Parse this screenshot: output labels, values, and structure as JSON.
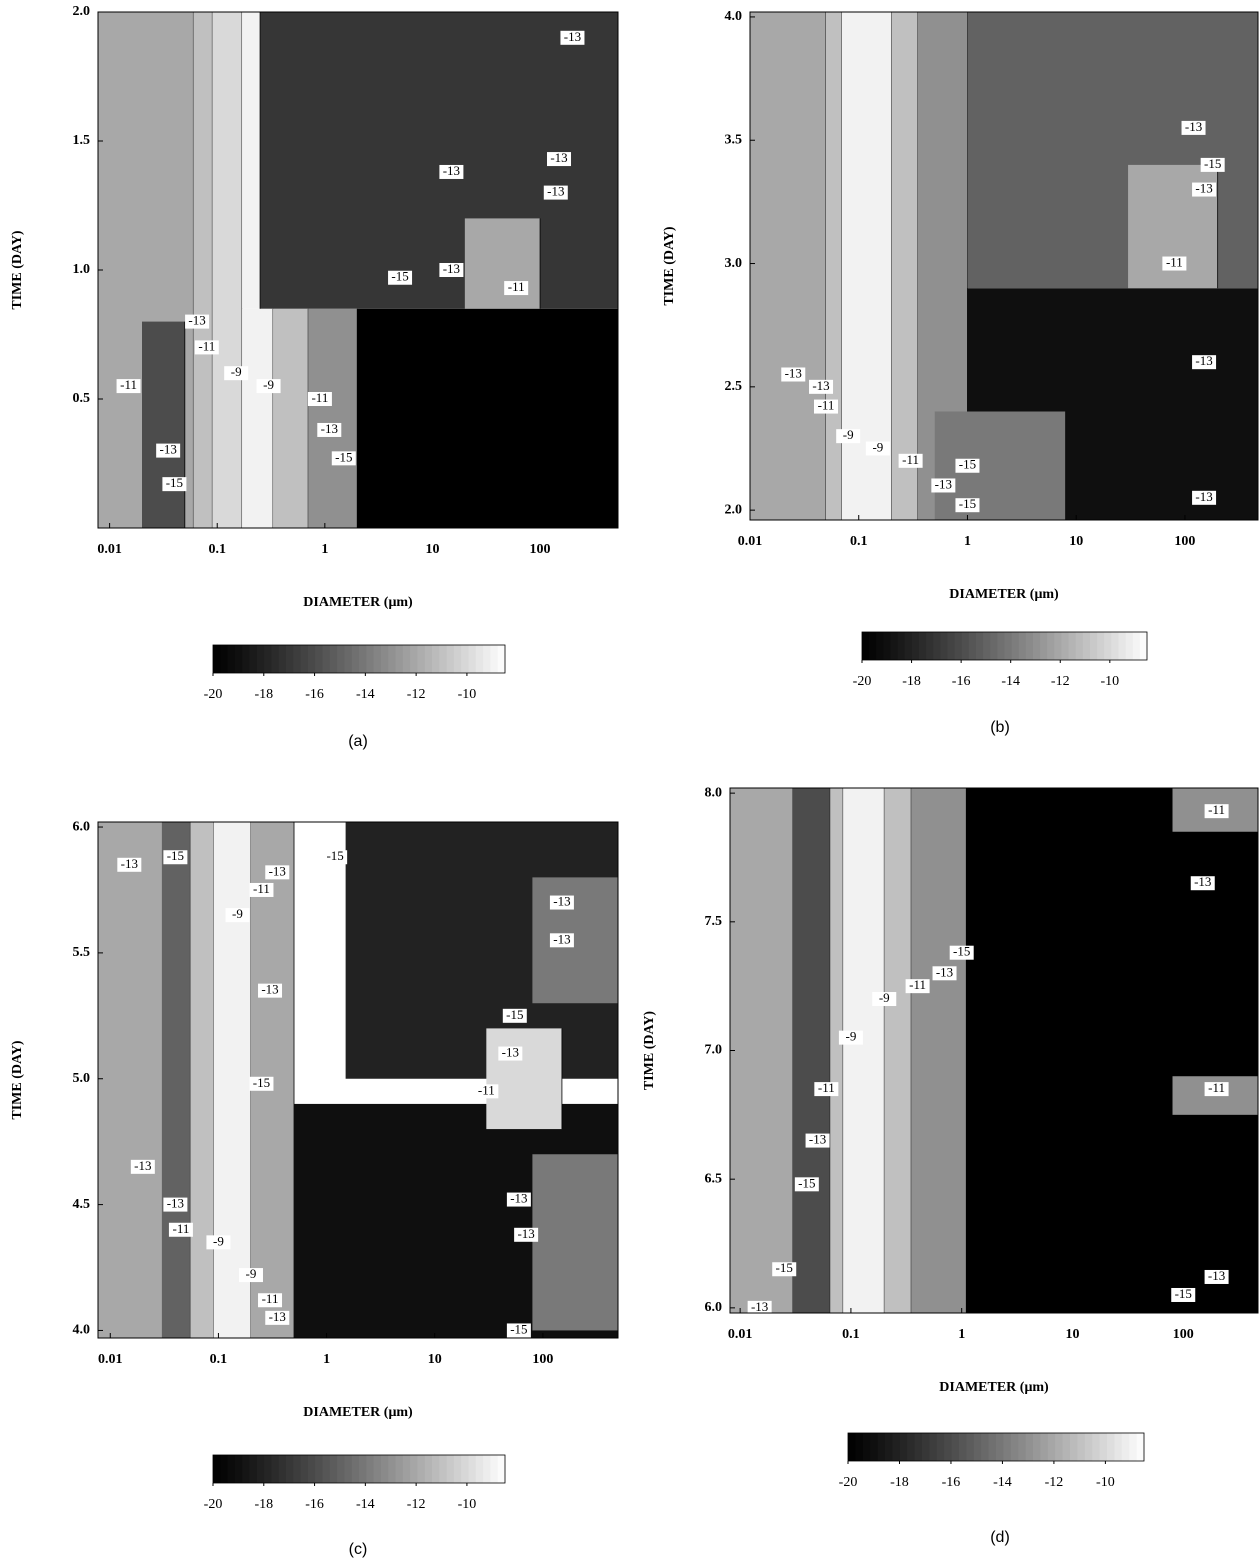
{
  "chart_data": [
    {
      "type": "contour",
      "label": "(a)",
      "xlabel": "DIAMETER (μm)",
      "ylabel": "TIME (DAY)",
      "log_x": true,
      "xlim": [
        0.0078,
        530
      ],
      "xticks": [
        0.01,
        0.1,
        1,
        10,
        100
      ],
      "ylim": [
        0,
        2
      ],
      "yticks": [
        0.5,
        {
          "value": 1,
          "label": "1.0"
        },
        1.5,
        {
          "value": 2,
          "label": "2.0"
        }
      ],
      "bands": [
        {
          "x": [
            0.0078,
            0.06
          ],
          "y": [
            0,
            2
          ],
          "value": -12
        },
        {
          "x": [
            0.02,
            0.05
          ],
          "y": [
            0,
            0.8
          ],
          "value": -16
        },
        {
          "x": [
            0.06,
            0.09
          ],
          "y": [
            0,
            2
          ],
          "value": -11
        },
        {
          "x": [
            0.09,
            0.17
          ],
          "y": [
            0,
            2
          ],
          "value": -10
        },
        {
          "x": [
            0.17,
            0.33
          ],
          "y": [
            0,
            0.85
          ],
          "value": -9
        },
        {
          "x": [
            0.33,
            0.7
          ],
          "y": [
            0,
            0.85
          ],
          "value": -11
        },
        {
          "x": [
            0.7,
            2
          ],
          "y": [
            0,
            0.85
          ],
          "value": -13
        },
        {
          "x": [
            2,
            530
          ],
          "y": [
            0,
            0.85
          ],
          "value": -20
        },
        {
          "x": [
            0.25,
            530
          ],
          "y": [
            0.85,
            2
          ],
          "value": -17
        },
        {
          "x": [
            20,
            100
          ],
          "y": [
            0.85,
            1.2
          ],
          "value": -12
        },
        {
          "x": [
            0.17,
            0.25
          ],
          "y": [
            0.85,
            2
          ],
          "value": -9
        }
      ],
      "contour_labels": [
        {
          "x": 0.015,
          "y": 0.55,
          "value": -11
        },
        {
          "x": 0.035,
          "y": 0.3,
          "value": -13
        },
        {
          "x": 0.04,
          "y": 0.17,
          "value": -15
        },
        {
          "x": 0.065,
          "y": 0.8,
          "value": -13
        },
        {
          "x": 0.08,
          "y": 0.7,
          "value": -11
        },
        {
          "x": 0.15,
          "y": 0.6,
          "value": -9
        },
        {
          "x": 0.3,
          "y": 0.55,
          "value": -9
        },
        {
          "x": 0.9,
          "y": 0.5,
          "value": -11
        },
        {
          "x": 1.1,
          "y": 0.38,
          "value": -13
        },
        {
          "x": 1.5,
          "y": 0.27,
          "value": -15
        },
        {
          "x": 5,
          "y": 0.97,
          "value": -15
        },
        {
          "x": 15,
          "y": 1.0,
          "value": -13
        },
        {
          "x": 60,
          "y": 0.93,
          "value": -11
        },
        {
          "x": 15,
          "y": 1.38,
          "value": -13
        },
        {
          "x": 150,
          "y": 1.43,
          "value": -13
        },
        {
          "x": 140,
          "y": 1.3,
          "value": -13
        },
        {
          "x": 200,
          "y": 1.9,
          "value": -13
        }
      ],
      "colorbar": {
        "lim": [
          -20,
          -8.5
        ],
        "ticks": [
          -20,
          -18,
          -16,
          -14,
          -12,
          -10
        ]
      }
    },
    {
      "type": "contour",
      "label": "(b)",
      "xlabel": "DIAMETER (μm)",
      "ylabel": "TIME (DAY)",
      "log_x": true,
      "xlim": [
        0.01,
        470
      ],
      "xticks": [
        0.01,
        0.1,
        1,
        10,
        100
      ],
      "ylim": [
        1.96,
        4.02
      ],
      "yticks": [
        {
          "value": 2,
          "label": "2.0"
        },
        2.5,
        {
          "value": 3,
          "label": "3.0"
        },
        3.5,
        {
          "value": 4,
          "label": "4.0"
        }
      ],
      "bands": [
        {
          "x": [
            0.01,
            0.05
          ],
          "y": [
            1.96,
            4.02
          ],
          "value": -12
        },
        {
          "x": [
            0.05,
            0.07
          ],
          "y": [
            1.96,
            4.02
          ],
          "value": -11
        },
        {
          "x": [
            0.07,
            0.2
          ],
          "y": [
            1.96,
            4.02
          ],
          "value": -9
        },
        {
          "x": [
            0.2,
            0.35
          ],
          "y": [
            1.96,
            4.02
          ],
          "value": -11
        },
        {
          "x": [
            0.35,
            1
          ],
          "y": [
            1.96,
            4.02
          ],
          "value": -13
        },
        {
          "x": [
            1,
            470
          ],
          "y": [
            1.96,
            2.9
          ],
          "value": -19
        },
        {
          "x": [
            1,
            470
          ],
          "y": [
            2.9,
            4.02
          ],
          "value": -15
        },
        {
          "x": [
            30,
            200
          ],
          "y": [
            2.9,
            3.4
          ],
          "value": -12
        },
        {
          "x": [
            0.5,
            8
          ],
          "y": [
            1.96,
            2.4
          ],
          "value": -14
        }
      ],
      "contour_labels": [
        {
          "x": 0.025,
          "y": 2.55,
          "value": -13
        },
        {
          "x": 0.045,
          "y": 2.5,
          "value": -13
        },
        {
          "x": 0.05,
          "y": 2.42,
          "value": -11
        },
        {
          "x": 0.08,
          "y": 2.3,
          "value": -9
        },
        {
          "x": 0.15,
          "y": 2.25,
          "value": -9
        },
        {
          "x": 0.3,
          "y": 2.2,
          "value": -11
        },
        {
          "x": 1,
          "y": 2.18,
          "value": -15
        },
        {
          "x": 0.6,
          "y": 2.1,
          "value": -13
        },
        {
          "x": 1,
          "y": 2.02,
          "value": -15
        },
        {
          "x": 120,
          "y": 3.55,
          "value": -13
        },
        {
          "x": 180,
          "y": 3.4,
          "value": -15
        },
        {
          "x": 150,
          "y": 3.3,
          "value": -13
        },
        {
          "x": 80,
          "y": 3.0,
          "value": -11
        },
        {
          "x": 150,
          "y": 2.6,
          "value": -13
        },
        {
          "x": 150,
          "y": 2.05,
          "value": -13
        }
      ],
      "colorbar": {
        "lim": [
          -20,
          -8.5
        ],
        "ticks": [
          -20,
          -18,
          -16,
          -14,
          -12,
          -10
        ]
      }
    },
    {
      "type": "contour",
      "label": "(c)",
      "xlabel": "DIAMETER (μm)",
      "ylabel": "TIME (DAY)",
      "log_x": true,
      "xlim": [
        0.0077,
        495
      ],
      "xticks": [
        0.01,
        0.1,
        1,
        10,
        100
      ],
      "ylim": [
        3.97,
        6.02
      ],
      "yticks": [
        {
          "value": 4,
          "label": "4.0"
        },
        4.5,
        {
          "value": 5,
          "label": "5.0"
        },
        5.5,
        {
          "value": 6,
          "label": "6.0"
        }
      ],
      "bands": [
        {
          "x": [
            0.0077,
            0.04
          ],
          "y": [
            3.97,
            6.02
          ],
          "value": -12
        },
        {
          "x": [
            0.03,
            0.055
          ],
          "y": [
            3.97,
            6.02
          ],
          "value": -15
        },
        {
          "x": [
            0.055,
            0.09
          ],
          "y": [
            3.97,
            6.02
          ],
          "value": -11
        },
        {
          "x": [
            0.09,
            0.2
          ],
          "y": [
            3.97,
            6.02
          ],
          "value": -9
        },
        {
          "x": [
            0.2,
            0.5
          ],
          "y": [
            3.97,
            6.02
          ],
          "value": -12
        },
        {
          "x": [
            0.5,
            495
          ],
          "y": [
            3.97,
            4.9
          ],
          "value": -19
        },
        {
          "x": [
            1.5,
            495
          ],
          "y": [
            5.0,
            6.02
          ],
          "value": -18
        },
        {
          "x": [
            30,
            150
          ],
          "y": [
            4.8,
            5.2
          ],
          "value": -10
        },
        {
          "x": [
            80,
            495
          ],
          "y": [
            4.0,
            4.7
          ],
          "value": -14
        },
        {
          "x": [
            80,
            495
          ],
          "y": [
            5.3,
            5.8
          ],
          "value": -14
        }
      ],
      "contour_labels": [
        {
          "x": 0.015,
          "y": 5.85,
          "value": -13
        },
        {
          "x": 0.04,
          "y": 5.88,
          "value": -15
        },
        {
          "x": 0.15,
          "y": 5.65,
          "value": -9
        },
        {
          "x": 0.25,
          "y": 5.75,
          "value": -11
        },
        {
          "x": 0.35,
          "y": 5.82,
          "value": -13
        },
        {
          "x": 1.2,
          "y": 5.88,
          "value": -15
        },
        {
          "x": 0.3,
          "y": 5.35,
          "value": -13
        },
        {
          "x": 0.25,
          "y": 4.98,
          "value": -15
        },
        {
          "x": 30,
          "y": 4.95,
          "value": -11
        },
        {
          "x": 55,
          "y": 5.25,
          "value": -15
        },
        {
          "x": 50,
          "y": 5.1,
          "value": -13
        },
        {
          "x": 0.02,
          "y": 4.65,
          "value": -13
        },
        {
          "x": 0.04,
          "y": 4.5,
          "value": -13
        },
        {
          "x": 0.045,
          "y": 4.4,
          "value": -11
        },
        {
          "x": 0.1,
          "y": 4.35,
          "value": -9
        },
        {
          "x": 0.2,
          "y": 4.22,
          "value": -9
        },
        {
          "x": 0.3,
          "y": 4.12,
          "value": -11
        },
        {
          "x": 0.35,
          "y": 4.05,
          "value": -13
        },
        {
          "x": 60,
          "y": 4.52,
          "value": -13
        },
        {
          "x": 70,
          "y": 4.38,
          "value": -13
        },
        {
          "x": 60,
          "y": 4.0,
          "value": -15
        },
        {
          "x": 150,
          "y": 5.7,
          "value": -13
        },
        {
          "x": 150,
          "y": 5.55,
          "value": -13
        }
      ],
      "colorbar": {
        "lim": [
          -20,
          -8.5
        ],
        "ticks": [
          -20,
          -18,
          -16,
          -14,
          -12,
          -10
        ]
      }
    },
    {
      "type": "contour",
      "label": "(d)",
      "xlabel": "DIAMETER (μm)",
      "ylabel": "TIME (DAY)",
      "log_x": true,
      "xlim": [
        0.0081,
        473
      ],
      "xticks": [
        0.01,
        0.1,
        1,
        10,
        100
      ],
      "ylim": [
        5.98,
        8.02
      ],
      "yticks": [
        {
          "value": 6,
          "label": "6.0"
        },
        6.5,
        {
          "value": 7,
          "label": "7.0"
        },
        7.5,
        {
          "value": 8,
          "label": "8.0"
        }
      ],
      "bands": [
        {
          "x": [
            0.0081,
            0.03
          ],
          "y": [
            5.98,
            8.02
          ],
          "value": -12
        },
        {
          "x": [
            0.03,
            0.065
          ],
          "y": [
            5.98,
            8.02
          ],
          "value": -16
        },
        {
          "x": [
            0.065,
            0.085
          ],
          "y": [
            5.98,
            8.02
          ],
          "value": -11
        },
        {
          "x": [
            0.085,
            0.2
          ],
          "y": [
            5.98,
            8.02
          ],
          "value": -9
        },
        {
          "x": [
            0.2,
            0.35
          ],
          "y": [
            5.98,
            8.02
          ],
          "value": -11
        },
        {
          "x": [
            0.35,
            1.1
          ],
          "y": [
            5.98,
            8.02
          ],
          "value": -13
        },
        {
          "x": [
            1.1,
            473
          ],
          "y": [
            5.98,
            8.02
          ],
          "value": -20
        },
        {
          "x": [
            80,
            473
          ],
          "y": [
            6.75,
            6.9
          ],
          "value": -13
        },
        {
          "x": [
            80,
            473
          ],
          "y": [
            7.85,
            8.02
          ],
          "value": -13
        }
      ],
      "contour_labels": [
        {
          "x": 0.015,
          "y": 6.0,
          "value": -13
        },
        {
          "x": 0.025,
          "y": 6.15,
          "value": -15
        },
        {
          "x": 0.04,
          "y": 6.48,
          "value": -15
        },
        {
          "x": 0.05,
          "y": 6.65,
          "value": -13
        },
        {
          "x": 0.06,
          "y": 6.85,
          "value": -11
        },
        {
          "x": 0.1,
          "y": 7.05,
          "value": -9
        },
        {
          "x": 0.2,
          "y": 7.2,
          "value": -9
        },
        {
          "x": 0.4,
          "y": 7.25,
          "value": -11
        },
        {
          "x": 0.7,
          "y": 7.3,
          "value": -13
        },
        {
          "x": 1,
          "y": 7.38,
          "value": -15
        },
        {
          "x": 200,
          "y": 7.93,
          "value": -11
        },
        {
          "x": 150,
          "y": 7.65,
          "value": -13
        },
        {
          "x": 200,
          "y": 6.85,
          "value": -11
        },
        {
          "x": 200,
          "y": 6.12,
          "value": -13
        },
        {
          "x": 100,
          "y": 6.05,
          "value": -15
        }
      ],
      "colorbar": {
        "lim": [
          -20,
          -8.5
        ],
        "ticks": [
          -20,
          -18,
          -16,
          -14,
          -12,
          -10
        ]
      }
    }
  ]
}
